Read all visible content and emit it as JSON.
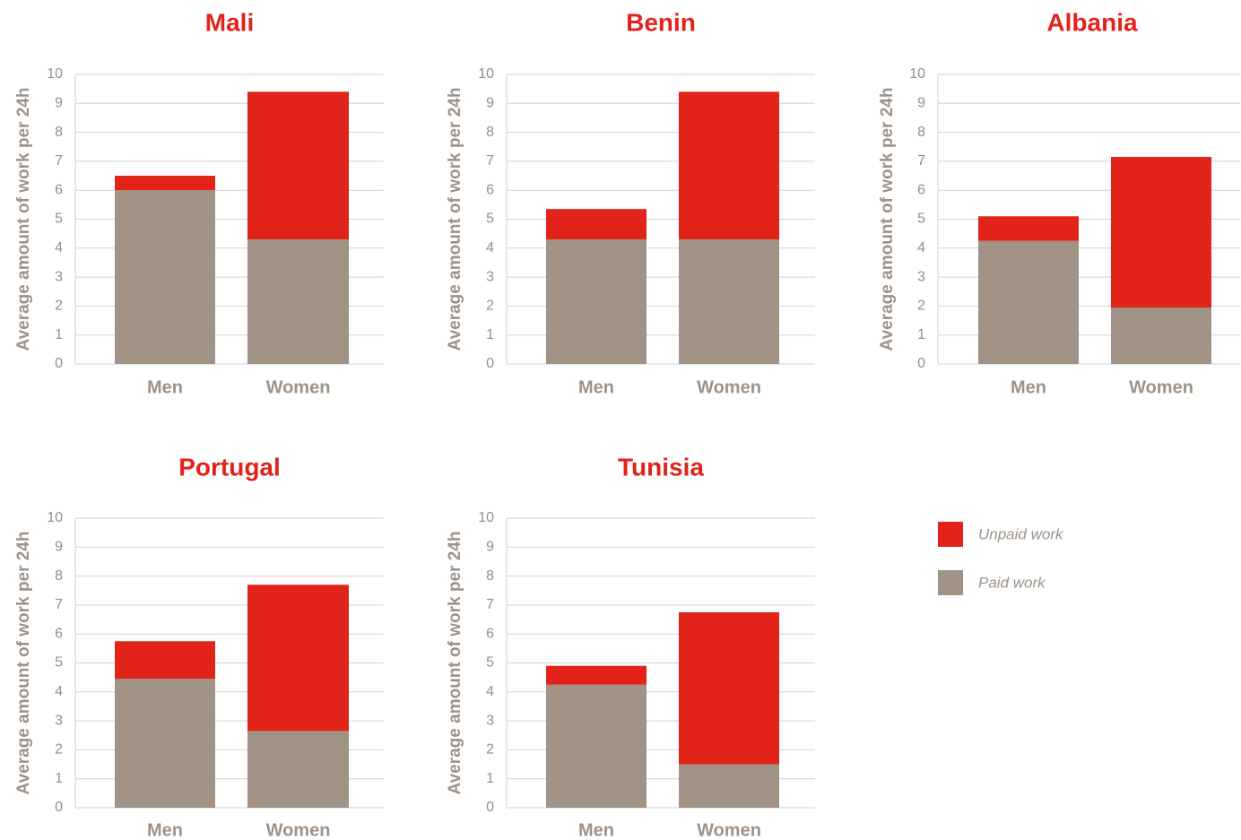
{
  "colors": {
    "unpaid": "#e2231a",
    "paid": "#a09285",
    "title": "#e2231a",
    "grid": "#d2d2d2"
  },
  "legend": [
    {
      "key": "unpaid",
      "label": "Unpaid work"
    },
    {
      "key": "paid",
      "label": "Paid work"
    }
  ],
  "chart_data": [
    {
      "type": "bar",
      "stacked": true,
      "title": "Mali",
      "ylabel": "Average amount of work per 24h",
      "categories": [
        "Men",
        "Women"
      ],
      "ylim": [
        0,
        10
      ],
      "yticks": [
        0,
        1,
        2,
        3,
        4,
        5,
        6,
        7,
        8,
        9,
        10
      ],
      "grid": true,
      "series": [
        {
          "name": "Paid work",
          "key": "paid",
          "values": [
            6.0,
            4.3
          ]
        },
        {
          "name": "Unpaid work",
          "key": "unpaid",
          "values": [
            0.5,
            5.1
          ]
        }
      ]
    },
    {
      "type": "bar",
      "stacked": true,
      "title": "Benin",
      "ylabel": "Average amount of work per 24h",
      "categories": [
        "Men",
        "Women"
      ],
      "ylim": [
        0,
        10
      ],
      "yticks": [
        0,
        1,
        2,
        3,
        4,
        5,
        6,
        7,
        8,
        9,
        10
      ],
      "grid": true,
      "series": [
        {
          "name": "Paid work",
          "key": "paid",
          "values": [
            4.3,
            4.3
          ]
        },
        {
          "name": "Unpaid work",
          "key": "unpaid",
          "values": [
            1.05,
            5.1
          ]
        }
      ]
    },
    {
      "type": "bar",
      "stacked": true,
      "title": "Albania",
      "ylabel": "Average amount of work per 24h",
      "categories": [
        "Men",
        "Women"
      ],
      "ylim": [
        0,
        10
      ],
      "yticks": [
        0,
        1,
        2,
        3,
        4,
        5,
        6,
        7,
        8,
        9,
        10
      ],
      "grid": true,
      "series": [
        {
          "name": "Paid work",
          "key": "paid",
          "values": [
            4.25,
            1.95
          ]
        },
        {
          "name": "Unpaid work",
          "key": "unpaid",
          "values": [
            0.85,
            5.2
          ]
        }
      ]
    },
    {
      "type": "bar",
      "stacked": true,
      "title": "Portugal",
      "ylabel": "Average amount of work per 24h",
      "categories": [
        "Men",
        "Women"
      ],
      "ylim": [
        0,
        10
      ],
      "yticks": [
        0,
        1,
        2,
        3,
        4,
        5,
        6,
        7,
        8,
        9,
        10
      ],
      "grid": true,
      "series": [
        {
          "name": "Paid work",
          "key": "paid",
          "values": [
            4.45,
            2.65
          ]
        },
        {
          "name": "Unpaid work",
          "key": "unpaid",
          "values": [
            1.3,
            5.05
          ]
        }
      ]
    },
    {
      "type": "bar",
      "stacked": true,
      "title": "Tunisia",
      "ylabel": "Average amount of work per 24h",
      "categories": [
        "Men",
        "Women"
      ],
      "ylim": [
        0,
        10
      ],
      "yticks": [
        0,
        1,
        2,
        3,
        4,
        5,
        6,
        7,
        8,
        9,
        10
      ],
      "grid": true,
      "series": [
        {
          "name": "Paid work",
          "key": "paid",
          "values": [
            4.25,
            1.5
          ]
        },
        {
          "name": "Unpaid work",
          "key": "unpaid",
          "values": [
            0.65,
            5.25
          ]
        }
      ]
    }
  ]
}
